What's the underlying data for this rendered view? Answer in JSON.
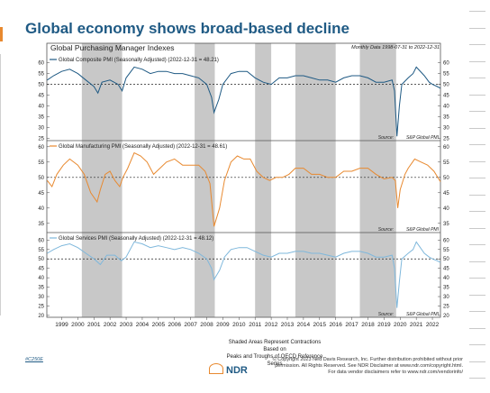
{
  "page": {
    "title": "Global economy shows broad-based decline",
    "chart_code": "#C250E",
    "shading_note_line1": "Shaded Areas Represent Contractions Based on",
    "shading_note_line2": "Peaks and Troughs of OECD Reference Series",
    "brand": "NDR",
    "copyright_line1": "© Copyright 2023 Ned Davis Research, Inc. Further distribution prohibited without prior",
    "copyright_line2": "permission. All Rights Reserved. See NDR Disclaimer at www.ndr.com/copyright.html.",
    "copyright_line3": "For data vendor disclaimers refer to www.ndr.com/vendorinfo/"
  },
  "colors": {
    "title": "#1f5a84",
    "composite": "#1f5a84",
    "manufacturing": "#e8892f",
    "services": "#7fb8dc",
    "shading": "#c8c8c8"
  },
  "chart_data": {
    "type": "line",
    "title": "Global Purchasing Manager Indexes",
    "subtitle": "Monthly Data 1998-07-31 to 2022-12-31",
    "x_ticks": [
      "1999",
      "2000",
      "2001",
      "2002",
      "2003",
      "2004",
      "2005",
      "2006",
      "2007",
      "2008",
      "2009",
      "2010",
      "2011",
      "2012",
      "2013",
      "2014",
      "2015",
      "2016",
      "2017",
      "2018",
      "2019",
      "2020",
      "2021",
      "2022"
    ],
    "xlim": [
      1998.58,
      2023.0
    ],
    "contractions": [
      [
        2000.75,
        2003.25
      ],
      [
        2007.75,
        2009.0
      ],
      [
        2011.5,
        2012.5
      ],
      [
        2014.0,
        2016.5
      ],
      [
        2018.0,
        2020.25
      ]
    ],
    "panels": [
      {
        "name": "Global Composite PMI (Seasonally Adjusted) (2022-12-31 = 48.21)",
        "source": "S&P Global PMI",
        "ylim": [
          24,
          64
        ],
        "y_ticks": [
          "25",
          "30",
          "35",
          "40",
          "45",
          "50",
          "55",
          "60"
        ],
        "reference": 50,
        "x": [
          1998.6,
          1999.0,
          1999.5,
          2000.0,
          2000.5,
          2001.0,
          2001.5,
          2001.75,
          2002.0,
          2002.5,
          2003.0,
          2003.25,
          2003.5,
          2004.0,
          2004.5,
          2005.0,
          2005.5,
          2006.0,
          2006.5,
          2007.0,
          2007.5,
          2008.0,
          2008.5,
          2008.8,
          2008.95,
          2009.25,
          2009.5,
          2010.0,
          2010.5,
          2011.0,
          2011.5,
          2012.0,
          2012.5,
          2013.0,
          2013.5,
          2014.0,
          2014.5,
          2015.0,
          2015.5,
          2016.0,
          2016.5,
          2017.0,
          2017.5,
          2018.0,
          2018.5,
          2019.0,
          2019.5,
          2020.0,
          2020.15,
          2020.3,
          2020.45,
          2020.6,
          2021.0,
          2021.3,
          2021.5,
          2022.0,
          2022.3,
          2022.5,
          2022.8,
          2023.0
        ],
        "y": [
          52,
          54,
          56,
          57,
          55,
          52,
          49,
          46,
          51,
          52,
          50,
          47,
          53,
          58,
          57,
          55,
          56,
          56,
          55,
          55,
          54,
          53,
          50,
          44,
          37,
          43,
          50,
          55,
          56,
          56,
          53,
          51,
          50,
          53,
          53,
          54,
          54,
          53,
          52,
          52,
          51,
          53,
          54,
          54,
          53,
          51,
          51,
          52,
          47,
          26,
          40,
          50,
          53,
          55,
          58,
          54,
          51,
          50,
          49,
          48.2
        ]
      },
      {
        "name": "Global Manufacturing PMI (Seasonally Adjusted) (2022-12-31 = 48.61)",
        "source": "S&P Global PMI",
        "ylim": [
          32,
          62
        ],
        "y_ticks": [
          "35",
          "40",
          "45",
          "50",
          "55",
          "60"
        ],
        "reference": 50,
        "x": [
          1998.6,
          1998.9,
          1999.2,
          1999.6,
          2000.0,
          2000.5,
          2000.9,
          2001.3,
          2001.7,
          2001.9,
          2002.2,
          2002.5,
          2002.8,
          2003.1,
          2003.3,
          2003.6,
          2004.0,
          2004.4,
          2004.8,
          2005.2,
          2005.6,
          2006.0,
          2006.5,
          2007.0,
          2007.5,
          2008.0,
          2008.4,
          2008.7,
          2008.95,
          2009.3,
          2009.6,
          2010.0,
          2010.4,
          2010.8,
          2011.2,
          2011.6,
          2012.0,
          2012.4,
          2012.8,
          2013.2,
          2013.6,
          2014.0,
          2014.5,
          2015.0,
          2015.5,
          2016.0,
          2016.5,
          2017.0,
          2017.5,
          2018.0,
          2018.5,
          2019.0,
          2019.5,
          2020.0,
          2020.2,
          2020.35,
          2020.5,
          2020.8,
          2021.0,
          2021.4,
          2021.8,
          2022.2,
          2022.6,
          2023.0
        ],
        "y": [
          49,
          47,
          51,
          54,
          56,
          54,
          51,
          45,
          42,
          46,
          51,
          52,
          49,
          47,
          50,
          53,
          58,
          57,
          55,
          51,
          53,
          55,
          56,
          54,
          54,
          54,
          52,
          48,
          34,
          40,
          49,
          55,
          57,
          56,
          56,
          52,
          50,
          49,
          50,
          50,
          51,
          53,
          53,
          51,
          51,
          50,
          50,
          52,
          52,
          53,
          53,
          51,
          49.5,
          50,
          49,
          40,
          46,
          51,
          53,
          56,
          55,
          54,
          52,
          48.6
        ]
      },
      {
        "name": "Global Services PMI (Seasonally Adjusted) (2022-12-31 = 48.12)",
        "source": "S&P Global PMI",
        "ylim": [
          19,
          64
        ],
        "y_ticks": [
          "20",
          "25",
          "30",
          "35",
          "40",
          "45",
          "50",
          "55",
          "60"
        ],
        "reference": 50,
        "x": [
          1998.6,
          1999.0,
          1999.5,
          2000.0,
          2000.5,
          2001.0,
          2001.5,
          2001.9,
          2002.3,
          2002.8,
          2003.2,
          2003.5,
          2004.0,
          2004.5,
          2005.0,
          2005.5,
          2006.0,
          2006.5,
          2007.0,
          2007.5,
          2008.0,
          2008.5,
          2008.8,
          2008.95,
          2009.3,
          2009.6,
          2010.0,
          2010.5,
          2011.0,
          2011.5,
          2012.0,
          2012.5,
          2013.0,
          2013.5,
          2014.0,
          2014.5,
          2015.0,
          2015.5,
          2016.0,
          2016.5,
          2017.0,
          2017.5,
          2018.0,
          2018.5,
          2019.0,
          2019.5,
          2020.0,
          2020.15,
          2020.3,
          2020.45,
          2020.6,
          2021.0,
          2021.3,
          2021.5,
          2022.0,
          2022.3,
          2022.5,
          2022.8,
          2023.0
        ],
        "y": [
          53,
          55,
          57,
          58,
          56,
          53,
          50,
          47,
          52,
          52,
          49,
          51,
          59,
          58,
          56,
          57,
          56,
          55,
          56,
          55,
          53,
          50,
          45,
          39,
          44,
          51,
          55,
          56,
          56,
          54,
          52,
          51,
          53,
          53,
          54,
          54,
          53,
          53,
          52,
          51,
          53,
          54,
          54,
          53,
          51,
          51,
          52,
          45,
          24,
          38,
          50,
          53,
          55,
          59,
          53,
          51,
          50,
          49,
          48.1
        ]
      }
    ]
  }
}
